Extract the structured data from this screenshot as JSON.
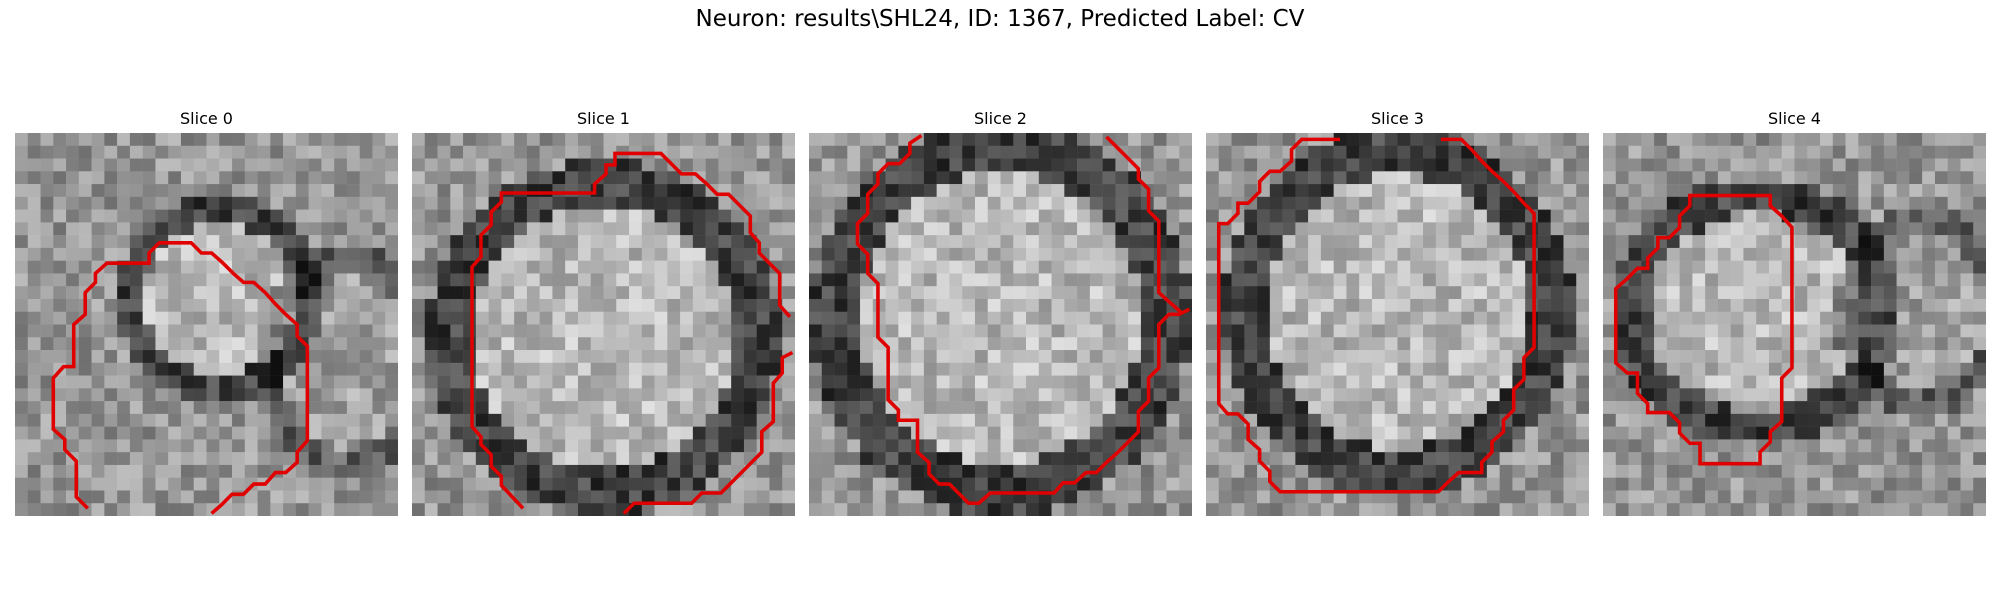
{
  "figure": {
    "title": "Neuron: results\\SHL24, ID: 1367, Predicted Label: CV",
    "slices": [
      {
        "title": "Slice 0",
        "overlay_color": "#e00000"
      },
      {
        "title": "Slice 1",
        "overlay_color": "#e00000"
      },
      {
        "title": "Slice 2",
        "overlay_color": "#e00000"
      },
      {
        "title": "Slice 3",
        "overlay_color": "#e00000"
      },
      {
        "title": "Slice 4",
        "overlay_color": "#e00000"
      }
    ]
  }
}
